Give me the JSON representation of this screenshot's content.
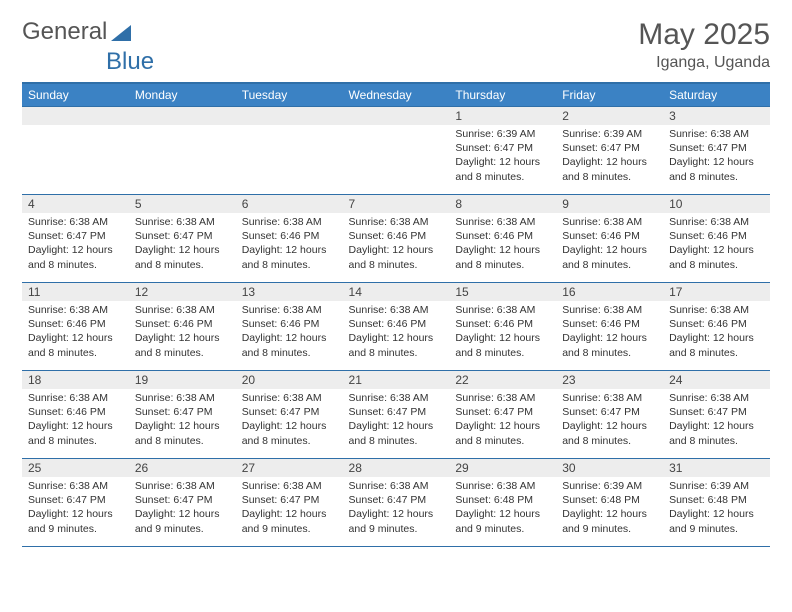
{
  "brand": {
    "part1": "General",
    "part2": "Blue",
    "logo_color": "#2f6fa8"
  },
  "title": "May 2025",
  "location": "Iganga, Uganda",
  "colors": {
    "header_bg": "#3b82c4",
    "border": "#2f6fa8",
    "daynum_bg": "#ededed",
    "text": "#333333",
    "muted": "#555555",
    "white": "#ffffff"
  },
  "weekdays": [
    "Sunday",
    "Monday",
    "Tuesday",
    "Wednesday",
    "Thursday",
    "Friday",
    "Saturday"
  ],
  "first_weekday_index": 4,
  "days_in_month": 31,
  "days": {
    "1": {
      "sunrise": "6:39 AM",
      "sunset": "6:47 PM",
      "daylight": "12 hours and 8 minutes."
    },
    "2": {
      "sunrise": "6:39 AM",
      "sunset": "6:47 PM",
      "daylight": "12 hours and 8 minutes."
    },
    "3": {
      "sunrise": "6:38 AM",
      "sunset": "6:47 PM",
      "daylight": "12 hours and 8 minutes."
    },
    "4": {
      "sunrise": "6:38 AM",
      "sunset": "6:47 PM",
      "daylight": "12 hours and 8 minutes."
    },
    "5": {
      "sunrise": "6:38 AM",
      "sunset": "6:47 PM",
      "daylight": "12 hours and 8 minutes."
    },
    "6": {
      "sunrise": "6:38 AM",
      "sunset": "6:46 PM",
      "daylight": "12 hours and 8 minutes."
    },
    "7": {
      "sunrise": "6:38 AM",
      "sunset": "6:46 PM",
      "daylight": "12 hours and 8 minutes."
    },
    "8": {
      "sunrise": "6:38 AM",
      "sunset": "6:46 PM",
      "daylight": "12 hours and 8 minutes."
    },
    "9": {
      "sunrise": "6:38 AM",
      "sunset": "6:46 PM",
      "daylight": "12 hours and 8 minutes."
    },
    "10": {
      "sunrise": "6:38 AM",
      "sunset": "6:46 PM",
      "daylight": "12 hours and 8 minutes."
    },
    "11": {
      "sunrise": "6:38 AM",
      "sunset": "6:46 PM",
      "daylight": "12 hours and 8 minutes."
    },
    "12": {
      "sunrise": "6:38 AM",
      "sunset": "6:46 PM",
      "daylight": "12 hours and 8 minutes."
    },
    "13": {
      "sunrise": "6:38 AM",
      "sunset": "6:46 PM",
      "daylight": "12 hours and 8 minutes."
    },
    "14": {
      "sunrise": "6:38 AM",
      "sunset": "6:46 PM",
      "daylight": "12 hours and 8 minutes."
    },
    "15": {
      "sunrise": "6:38 AM",
      "sunset": "6:46 PM",
      "daylight": "12 hours and 8 minutes."
    },
    "16": {
      "sunrise": "6:38 AM",
      "sunset": "6:46 PM",
      "daylight": "12 hours and 8 minutes."
    },
    "17": {
      "sunrise": "6:38 AM",
      "sunset": "6:46 PM",
      "daylight": "12 hours and 8 minutes."
    },
    "18": {
      "sunrise": "6:38 AM",
      "sunset": "6:46 PM",
      "daylight": "12 hours and 8 minutes."
    },
    "19": {
      "sunrise": "6:38 AM",
      "sunset": "6:47 PM",
      "daylight": "12 hours and 8 minutes."
    },
    "20": {
      "sunrise": "6:38 AM",
      "sunset": "6:47 PM",
      "daylight": "12 hours and 8 minutes."
    },
    "21": {
      "sunrise": "6:38 AM",
      "sunset": "6:47 PM",
      "daylight": "12 hours and 8 minutes."
    },
    "22": {
      "sunrise": "6:38 AM",
      "sunset": "6:47 PM",
      "daylight": "12 hours and 8 minutes."
    },
    "23": {
      "sunrise": "6:38 AM",
      "sunset": "6:47 PM",
      "daylight": "12 hours and 8 minutes."
    },
    "24": {
      "sunrise": "6:38 AM",
      "sunset": "6:47 PM",
      "daylight": "12 hours and 8 minutes."
    },
    "25": {
      "sunrise": "6:38 AM",
      "sunset": "6:47 PM",
      "daylight": "12 hours and 9 minutes."
    },
    "26": {
      "sunrise": "6:38 AM",
      "sunset": "6:47 PM",
      "daylight": "12 hours and 9 minutes."
    },
    "27": {
      "sunrise": "6:38 AM",
      "sunset": "6:47 PM",
      "daylight": "12 hours and 9 minutes."
    },
    "28": {
      "sunrise": "6:38 AM",
      "sunset": "6:47 PM",
      "daylight": "12 hours and 9 minutes."
    },
    "29": {
      "sunrise": "6:38 AM",
      "sunset": "6:48 PM",
      "daylight": "12 hours and 9 minutes."
    },
    "30": {
      "sunrise": "6:39 AM",
      "sunset": "6:48 PM",
      "daylight": "12 hours and 9 minutes."
    },
    "31": {
      "sunrise": "6:39 AM",
      "sunset": "6:48 PM",
      "daylight": "12 hours and 9 minutes."
    }
  },
  "labels": {
    "sunrise": "Sunrise:",
    "sunset": "Sunset:",
    "daylight": "Daylight:"
  }
}
